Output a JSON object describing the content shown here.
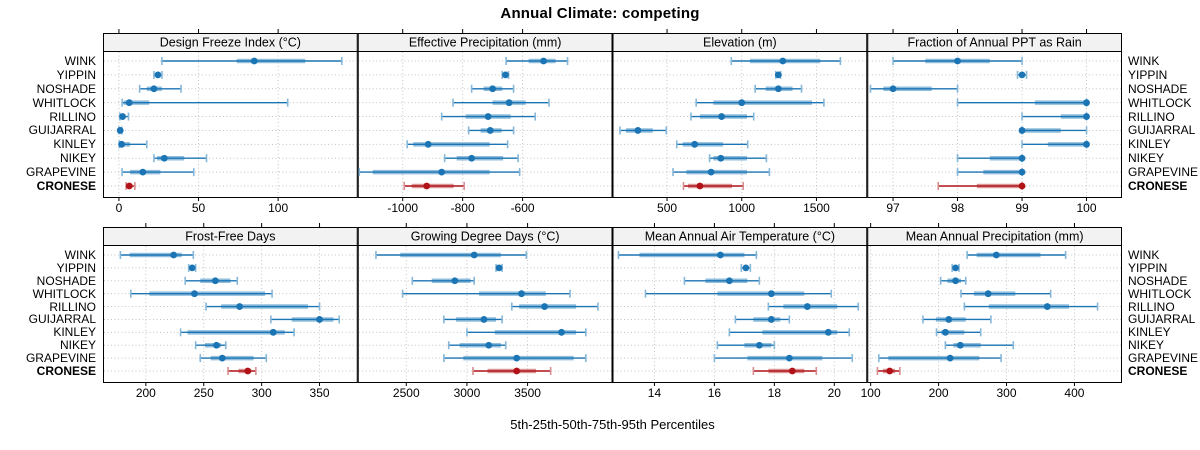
{
  "chart_data": {
    "type": "dotplot",
    "title": "Annual Climate: competing",
    "xlabel": "5th-25th-50th-75th-95th Percentiles",
    "percentile_labels": [
      "5th",
      "25th",
      "50th",
      "75th",
      "95th"
    ],
    "sites": [
      "WINK",
      "YIPPIN",
      "NOSHADE",
      "WHITLOCK",
      "RILLINO",
      "GUIJARRAL",
      "KINLEY",
      "NIKEY",
      "GRAPEVINE",
      "CRONESE"
    ],
    "highlight_site": "CRONESE",
    "colors": {
      "series": "#1b74b4",
      "series_band": "#85b7d9",
      "highlight": "#b01218",
      "highlight_band": "#d98d8f",
      "grid": "#c4c4c4",
      "strip_bg": "#f2f2f2",
      "border": "#000000",
      "text": "#000000",
      "background": "#ffffff"
    },
    "panel_rows": [
      {
        "panels": [
          {
            "title": "Design Freeze Index (°C)",
            "xlim": [
              -10,
              150
            ],
            "ticks": [
              0,
              50,
              100
            ],
            "series": [
              [
                27,
                74,
                85,
                117,
                140
              ],
              [
                22,
                23,
                24.5,
                26,
                27
              ],
              [
                13,
                17.5,
                22,
                27,
                39
              ],
              [
                2,
                3,
                6.5,
                19,
                106
              ],
              [
                0.6,
                1.5,
                2.3,
                4,
                6
              ],
              [
                0,
                0.3,
                0.8,
                1.3,
                1.8
              ],
              [
                0.2,
                0.7,
                1.7,
                7,
                17.5
              ],
              [
                22,
                24,
                28.5,
                41,
                55
              ],
              [
                2,
                7,
                15,
                26,
                47
              ],
              [
                4.5,
                5.5,
                6.5,
                8.5,
                10
              ]
            ]
          },
          {
            "title": "Effective Precipitation (mm)",
            "xlim": [
              -1150,
              -300
            ],
            "ticks": [
              -1000,
              -800,
              -600
            ],
            "series": [
              [
                -655,
                -580,
                -530,
                -490,
                -450
              ],
              [
                -668,
                -662,
                -657,
                -652,
                -647
              ],
              [
                -770,
                -730,
                -700,
                -668,
                -630
              ],
              [
                -832,
                -700,
                -645,
                -590,
                -512
              ],
              [
                -870,
                -790,
                -715,
                -640,
                -558
              ],
              [
                -780,
                -740,
                -708,
                -670,
                -630
              ],
              [
                -985,
                -965,
                -915,
                -710,
                -650
              ],
              [
                -860,
                -820,
                -770,
                -665,
                -615
              ],
              [
                -1145,
                -1100,
                -870,
                -710,
                -610
              ],
              [
                -995,
                -970,
                -920,
                -830,
                -795
              ]
            ]
          },
          {
            "title": "Elevation (m)",
            "xlim": [
              135,
              1840
            ],
            "ticks": [
              500,
              1000,
              1500
            ],
            "series": [
              [
                930,
                1055,
                1275,
                1525,
                1660
              ],
              [
                1228,
                1238,
                1245,
                1252,
                1260
              ],
              [
                1090,
                1160,
                1245,
                1340,
                1400
              ],
              [
                695,
                810,
                1000,
                1470,
                1550
              ],
              [
                660,
                720,
                865,
                1035,
                1080
              ],
              [
                185,
                225,
                305,
                405,
                495
              ],
              [
                565,
                605,
                685,
                875,
                1040
              ],
              [
                785,
                810,
                860,
                1035,
                1165
              ],
              [
                540,
                630,
                795,
                1035,
                1185
              ],
              [
                610,
                640,
                720,
                935,
                1010
              ]
            ]
          },
          {
            "title": "Fraction of Annual PPT as Rain",
            "xlim": [
              96.6,
              100.55
            ],
            "ticks": [
              97,
              98,
              99,
              100
            ],
            "series": [
              [
                97,
                97.5,
                98,
                98.5,
                99
              ],
              [
                98.93,
                98.97,
                99,
                99.03,
                99.07
              ],
              [
                96.65,
                96.85,
                97,
                97.6,
                98
              ],
              [
                98,
                99.2,
                100,
                100,
                100
              ],
              [
                99,
                99.6,
                100,
                100,
                100
              ],
              [
                99,
                99,
                99,
                99.6,
                100
              ],
              [
                99,
                99.4,
                100,
                100,
                100
              ],
              [
                98,
                98.5,
                99,
                99,
                99
              ],
              [
                98,
                98.4,
                99,
                99,
                99
              ],
              [
                97.7,
                98.3,
                99,
                99,
                99
              ]
            ]
          }
        ]
      },
      {
        "panels": [
          {
            "title": "Frost-Free Days",
            "xlim": [
              163,
              383
            ],
            "ticks": [
              200,
              250,
              300,
              350
            ],
            "series": [
              [
                178,
                186,
                224,
                231,
                241
              ],
              [
                237,
                239,
                240,
                241,
                243
              ],
              [
                234,
                247,
                260,
                273,
                279
              ],
              [
                187,
                203,
                242,
                303,
                309
              ],
              [
                252,
                265,
                281,
                340,
                350
              ],
              [
                308,
                326,
                350,
                362,
                367
              ],
              [
                230,
                236,
                310,
                320,
                328
              ],
              [
                243,
                251,
                261,
                265,
                269
              ],
              [
                247,
                256,
                266,
                293,
                304
              ],
              [
                271,
                280,
                288,
                291,
                295
              ]
            ]
          },
          {
            "title": "Growing Degree Days (°C)",
            "xlim": [
              2100,
              4200
            ],
            "ticks": [
              2500,
              3000,
              3500
            ],
            "series": [
              [
                2250,
                2450,
                3060,
                3280,
                3490
              ],
              [
                3240,
                3255,
                3265,
                3275,
                3290
              ],
              [
                2550,
                2710,
                2900,
                3030,
                3060
              ],
              [
                2470,
                3100,
                3450,
                3650,
                3850
              ],
              [
                3370,
                3430,
                3640,
                3900,
                4080
              ],
              [
                2810,
                2910,
                3140,
                3240,
                3290
              ],
              [
                3000,
                3230,
                3780,
                3900,
                3980
              ],
              [
                2850,
                2940,
                3180,
                3280,
                3320
              ],
              [
                2810,
                2970,
                3410,
                3880,
                3980
              ],
              [
                3050,
                3170,
                3410,
                3570,
                3690
              ]
            ]
          },
          {
            "title": "Mean Annual Air Temperature (°C)",
            "xlim": [
              12.6,
              21.1
            ],
            "ticks": [
              14,
              16,
              18,
              20
            ],
            "series": [
              [
                12.8,
                13.5,
                16.2,
                17.0,
                17.4
              ],
              [
                16.9,
                17.0,
                17.05,
                17.1,
                17.2
              ],
              [
                15.0,
                15.7,
                16.5,
                17.1,
                17.5
              ],
              [
                13.7,
                16.1,
                17.9,
                19.0,
                19.9
              ],
              [
                17.8,
                18.3,
                19.1,
                20.1,
                20.8
              ],
              [
                16.7,
                17.3,
                17.9,
                18.2,
                18.5
              ],
              [
                16.5,
                17.6,
                19.8,
                20.1,
                20.5
              ],
              [
                16.1,
                17.0,
                17.5,
                17.9,
                18.0
              ],
              [
                16.0,
                17.1,
                18.5,
                19.6,
                20.6
              ],
              [
                17.3,
                17.8,
                18.6,
                19.0,
                19.4
              ]
            ]
          },
          {
            "title": "Mean Annual Precipitation (mm)",
            "xlim": [
              95,
              470
            ],
            "ticks": [
              100,
              200,
              300,
              400
            ],
            "series": [
              [
                242,
                256,
                285,
                350,
                387
              ],
              [
                220,
                223,
                225,
                227,
                230
              ],
              [
                203,
                213,
                225,
                233,
                240
              ],
              [
                233,
                252,
                273,
                313,
                365
              ],
              [
                238,
                274,
                360,
                392,
                434
              ],
              [
                177,
                196,
                215,
                240,
                277
              ],
              [
                197,
                204,
                210,
                238,
                262
              ],
              [
                210,
                222,
                232,
                262,
                310
              ],
              [
                112,
                126,
                217,
                260,
                292
              ],
              [
                110,
                118,
                128,
                136,
                143
              ]
            ]
          }
        ]
      }
    ]
  }
}
